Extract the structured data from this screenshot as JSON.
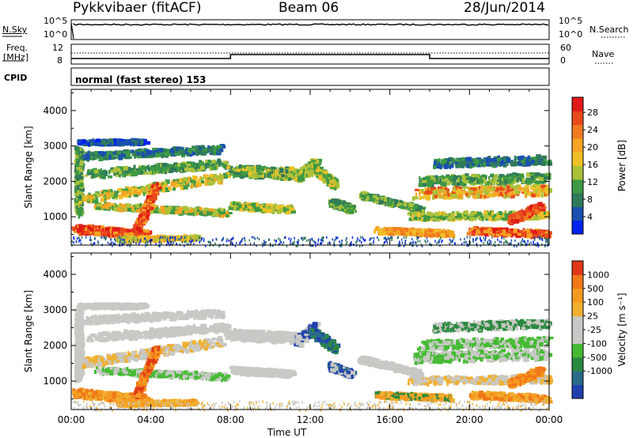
{
  "header": {
    "station": "Pykkvibaer (fitACF)",
    "beam": "Beam 06",
    "date": "28/Jun/2014"
  },
  "strips": {
    "nsky": {
      "label": "N.Sky",
      "ticks": [
        "10^5",
        "10^0"
      ]
    },
    "nsearch": {
      "label": "N.Search",
      "ticks": [
        "10^5",
        "10^0"
      ]
    },
    "freq": {
      "label_line1": "Freq.",
      "label_line2": "[MHz]",
      "ticks": [
        "12",
        "8"
      ]
    },
    "nave": {
      "label": "Nave",
      "ticks": [
        "60",
        "0"
      ]
    },
    "cpid": {
      "label": "CPID",
      "value": "normal (fast stereo) 153"
    }
  },
  "chart_data": [
    {
      "type": "heatmap",
      "name": "power",
      "ylabel": "Slant Range [km]",
      "xlabel": "Time UT",
      "x_ticks": [
        "00:00",
        "04:00",
        "08:00",
        "12:00",
        "16:00",
        "20:00",
        "00:00"
      ],
      "y_ticks": [
        "1000",
        "2000",
        "3000",
        "4000"
      ],
      "ylim": [
        200,
        4600
      ],
      "colorbar": {
        "label": "Power [dB]",
        "ticks": [
          "4",
          "8",
          "12",
          "16",
          "20",
          "24",
          "28"
        ],
        "colors": [
          "#0022ee",
          "#1a4fb0",
          "#2f7a5a",
          "#3c9a44",
          "#aac23a",
          "#f0c028",
          "#f5a423",
          "#f07a20",
          "#e84a1c",
          "#e01a18"
        ]
      }
    },
    {
      "type": "heatmap",
      "name": "velocity",
      "ylabel": "Slant Range [km]",
      "xlabel": "Time UT",
      "x_ticks": [
        "00:00",
        "04:00",
        "08:00",
        "12:00",
        "16:00",
        "20:00",
        "00:00"
      ],
      "y_ticks": [
        "1000",
        "2000",
        "3000",
        "4000"
      ],
      "ylim": [
        200,
        4600
      ],
      "colorbar": {
        "label": "Velocity [m s⁻¹]",
        "ticks": [
          "1000",
          "500",
          "100",
          "25",
          "-25",
          "-100",
          "-500",
          "-1000"
        ],
        "colors": [
          "#2040b0",
          "#2a6a8a",
          "#2a8a40",
          "#44bb33",
          "#c8c8c4",
          "#c8c8c4",
          "#f0b030",
          "#f59a20",
          "#f07818",
          "#e03818"
        ]
      }
    }
  ],
  "xlabel": "Time UT"
}
